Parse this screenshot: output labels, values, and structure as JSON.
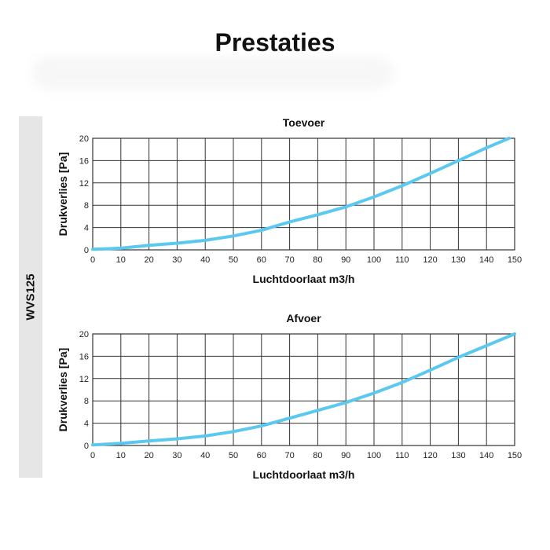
{
  "page": {
    "title": "Prestaties",
    "side_label": "WVS125"
  },
  "colors": {
    "series": "#5bc8ef",
    "grid": "#333333",
    "side_band": "#e6e6e6"
  },
  "chart_data": [
    {
      "type": "line",
      "title": "Toevoer",
      "xlabel": "Luchtdoorlaat m3/h",
      "ylabel": "Drukverlies [Pa]",
      "xlim": [
        0,
        150
      ],
      "ylim": [
        0,
        20
      ],
      "xticks": [
        0,
        10,
        20,
        30,
        40,
        50,
        60,
        70,
        80,
        90,
        100,
        110,
        120,
        130,
        140,
        150
      ],
      "yticks": [
        0,
        4,
        8,
        12,
        16,
        20
      ],
      "grid": true,
      "series": [
        {
          "x": [
            0,
            10,
            20,
            30,
            40,
            50,
            60,
            70,
            80,
            90,
            100,
            110,
            120,
            130,
            140,
            148
          ],
          "y": [
            0.1,
            0.3,
            0.8,
            1.2,
            1.7,
            2.5,
            3.5,
            5.0,
            6.3,
            7.7,
            9.5,
            11.5,
            13.7,
            16.0,
            18.3,
            20.0
          ]
        }
      ]
    },
    {
      "type": "line",
      "title": "Afvoer",
      "xlabel": "Luchtdoorlaat m3/h",
      "ylabel": "Drukverlies [Pa]",
      "xlim": [
        0,
        150
      ],
      "ylim": [
        0,
        20
      ],
      "xticks": [
        0,
        10,
        20,
        30,
        40,
        50,
        60,
        70,
        80,
        90,
        100,
        110,
        120,
        130,
        140,
        150
      ],
      "yticks": [
        0,
        4,
        8,
        12,
        16,
        20
      ],
      "grid": true,
      "series": [
        {
          "x": [
            0,
            10,
            20,
            30,
            40,
            50,
            60,
            70,
            80,
            90,
            100,
            110,
            120,
            130,
            140,
            150
          ],
          "y": [
            0.1,
            0.4,
            0.8,
            1.2,
            1.7,
            2.5,
            3.5,
            4.9,
            6.3,
            7.7,
            9.4,
            11.3,
            13.5,
            15.8,
            17.9,
            20.0
          ]
        }
      ]
    }
  ]
}
